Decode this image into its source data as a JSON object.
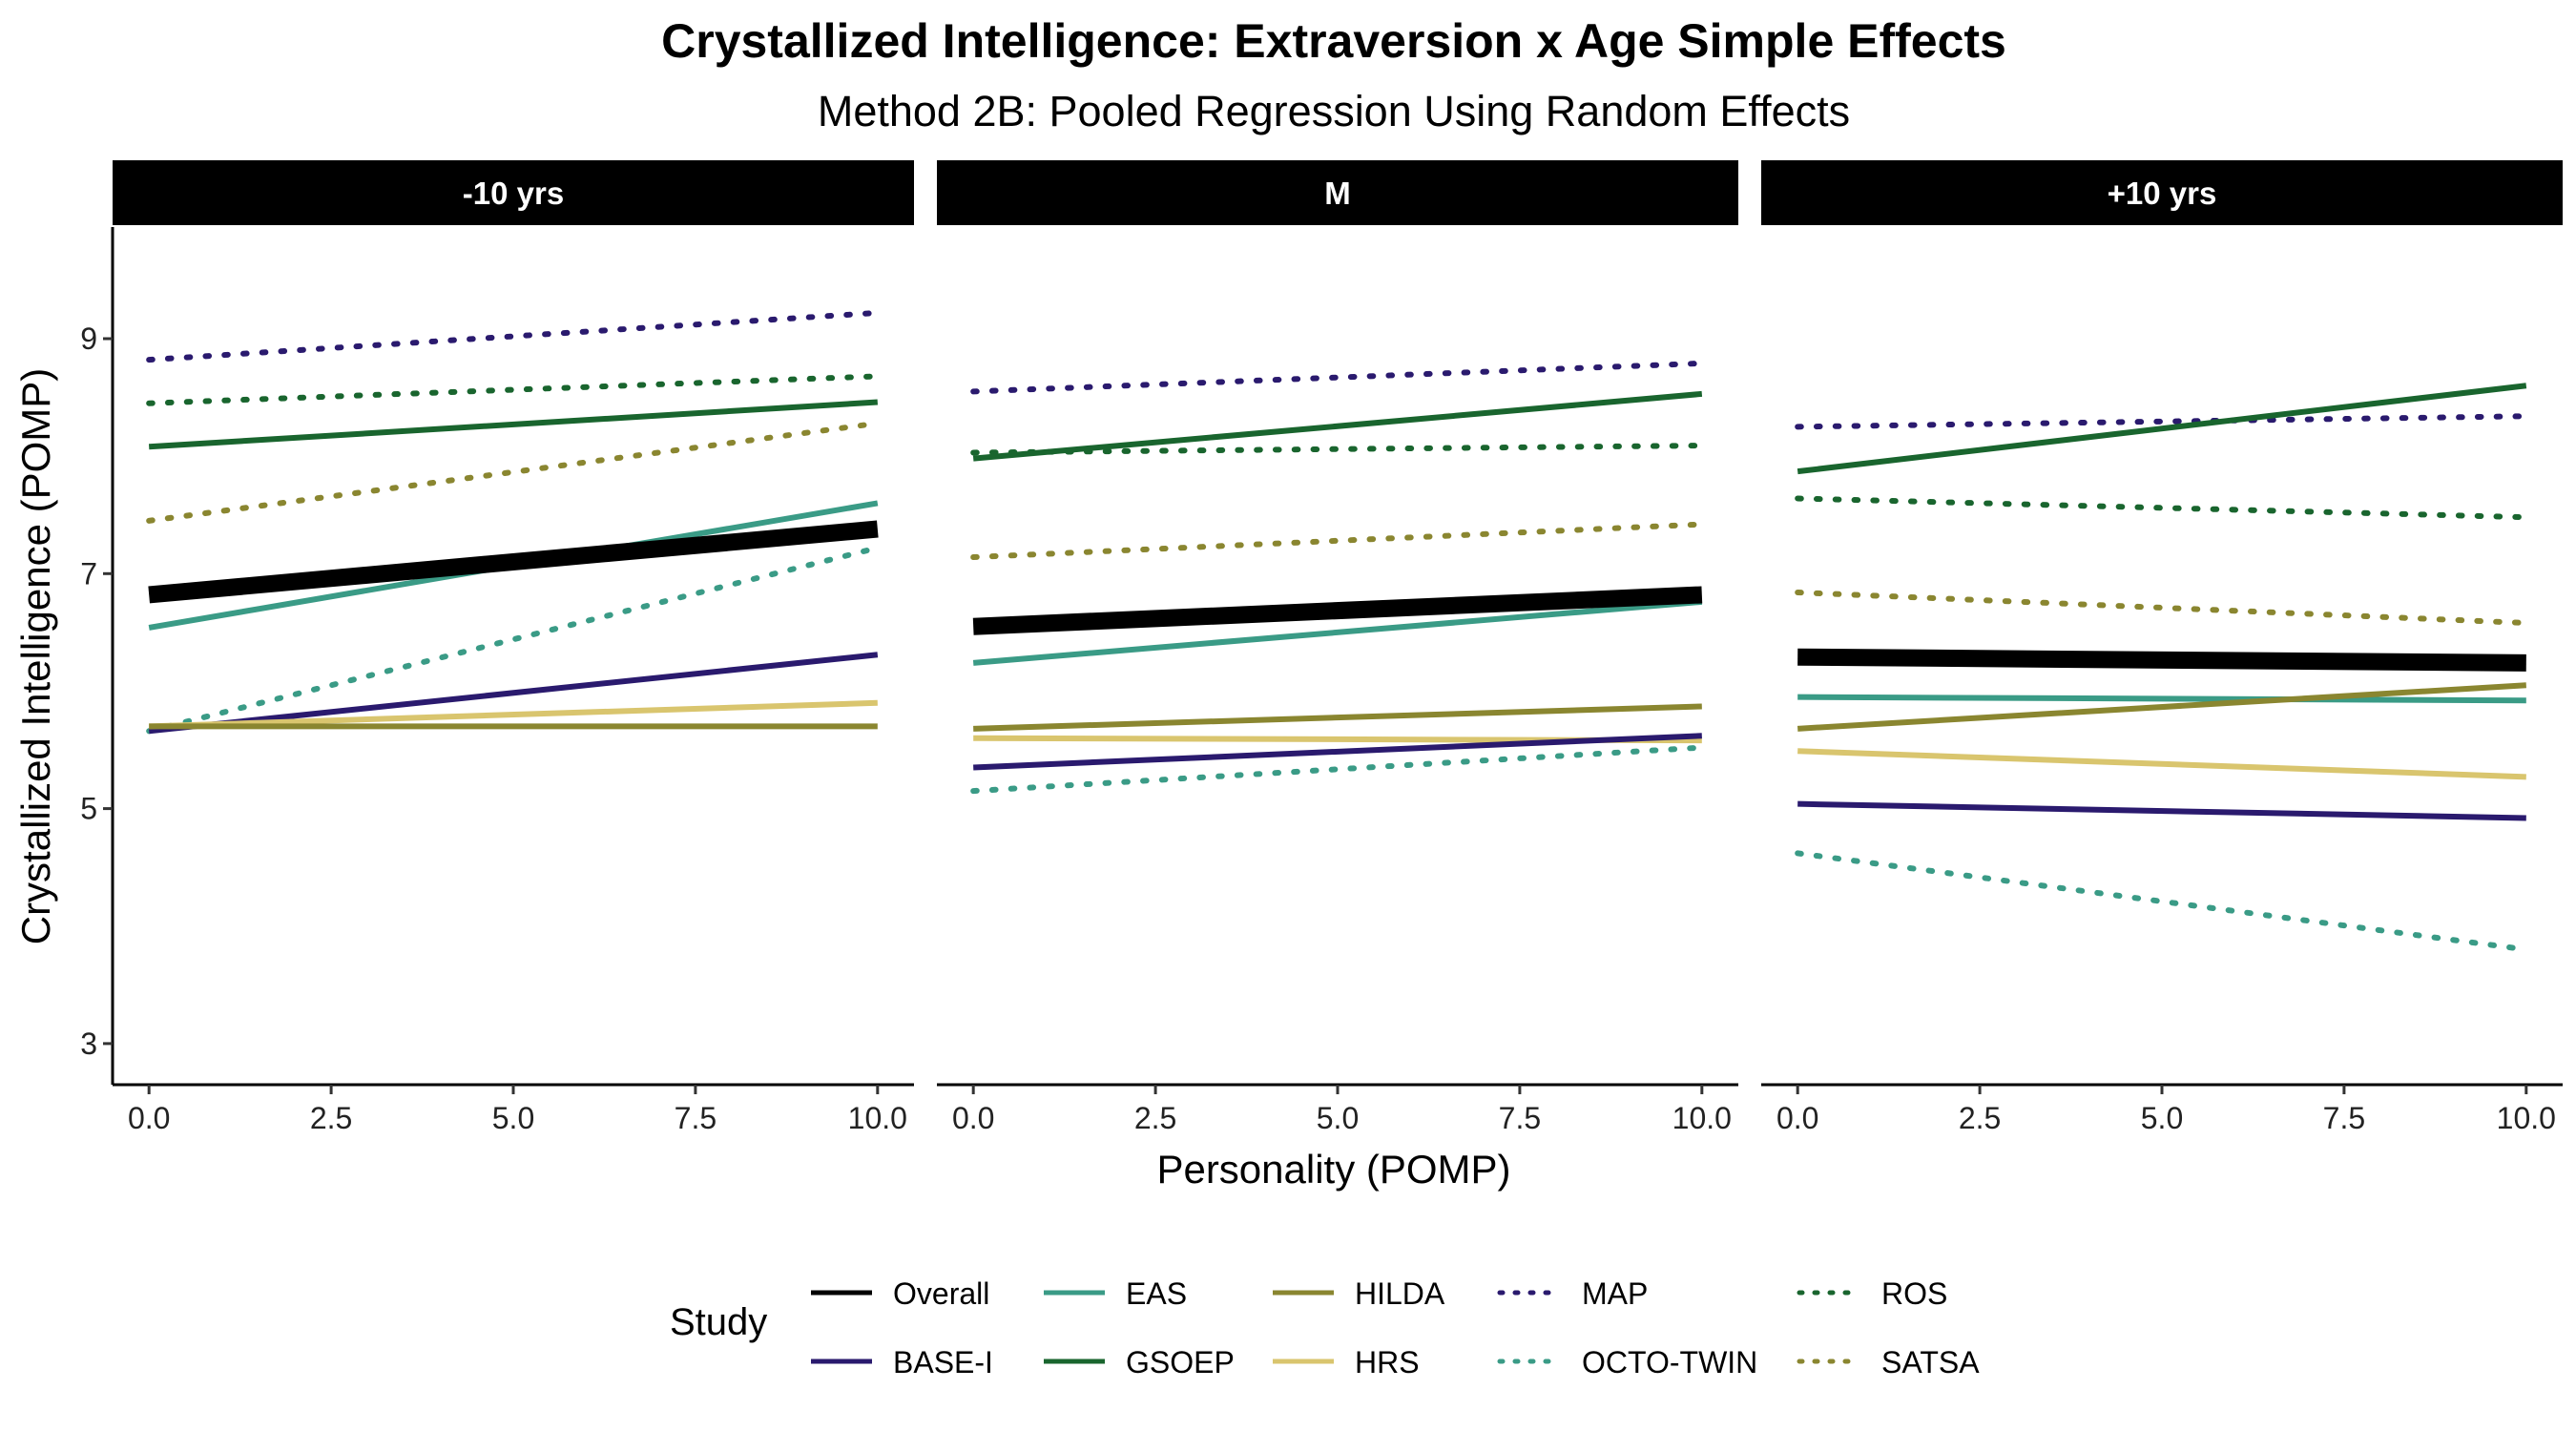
{
  "chart_data": {
    "type": "line",
    "title": "Crystallized Intelligence: Extraversion x Age Simple Effects",
    "subtitle": "Method 2B: Pooled Regression Using Random Effects",
    "xlabel": "Personality (POMP)",
    "ylabel": "Crystallized Intelligence (POMP)",
    "xlim": [
      -0.5,
      10.5
    ],
    "ylim": [
      2.65,
      9.95
    ],
    "x_ticks": [
      0,
      2.5,
      5,
      7.5,
      10
    ],
    "x_tick_labels": [
      "0.0",
      "2.5",
      "5.0",
      "7.5",
      "10.0"
    ],
    "y_ticks": [
      3,
      5,
      7,
      9
    ],
    "y_tick_labels": [
      "3",
      "5",
      "7",
      "9"
    ],
    "grid": false,
    "legend": {
      "title": "Study",
      "position": "bottom",
      "entries": [
        "Overall",
        "BASE-I",
        "EAS",
        "GSOEP",
        "HILDA",
        "HRS",
        "MAP",
        "OCTO-TWIN",
        "ROS",
        "SATSA"
      ]
    },
    "series_styles": {
      "Overall": {
        "color": "#000000",
        "dash": "solid"
      },
      "BASE-I": {
        "color": "#2a1a6e",
        "dash": "solid"
      },
      "EAS": {
        "color": "#3a9b86",
        "dash": "solid"
      },
      "GSOEP": {
        "color": "#19652e",
        "dash": "solid"
      },
      "HILDA": {
        "color": "#8a8630",
        "dash": "solid"
      },
      "HRS": {
        "color": "#d9c56e",
        "dash": "solid"
      },
      "MAP": {
        "color": "#2a1a6e",
        "dash": "dotted"
      },
      "OCTO-TWIN": {
        "color": "#3a9b86",
        "dash": "dotted"
      },
      "ROS": {
        "color": "#19652e",
        "dash": "dotted"
      },
      "SATSA": {
        "color": "#8a8630",
        "dash": "dotted"
      }
    },
    "panels": [
      {
        "label": "-10 yrs",
        "x": [
          0,
          10
        ],
        "series": [
          {
            "name": "MAP",
            "values": [
              8.82,
              9.22
            ]
          },
          {
            "name": "ROS",
            "values": [
              8.45,
              8.68
            ]
          },
          {
            "name": "GSOEP",
            "values": [
              8.08,
              8.46
            ]
          },
          {
            "name": "SATSA",
            "values": [
              7.45,
              8.28
            ]
          },
          {
            "name": "EAS",
            "values": [
              6.54,
              7.6
            ]
          },
          {
            "name": "OCTO-TWIN",
            "values": [
              5.66,
              7.22
            ]
          },
          {
            "name": "BASE-I",
            "values": [
              5.66,
              6.31
            ]
          },
          {
            "name": "HRS",
            "values": [
              5.7,
              5.9
            ]
          },
          {
            "name": "HILDA",
            "values": [
              5.7,
              5.7
            ]
          },
          {
            "name": "Overall",
            "values": [
              6.82,
              7.38
            ]
          }
        ]
      },
      {
        "label": "M",
        "x": [
          0,
          10
        ],
        "series": [
          {
            "name": "MAP",
            "values": [
              8.55,
              8.79
            ]
          },
          {
            "name": "ROS",
            "values": [
              8.03,
              8.09
            ]
          },
          {
            "name": "GSOEP",
            "values": [
              7.98,
              8.53
            ]
          },
          {
            "name": "SATSA",
            "values": [
              7.14,
              7.42
            ]
          },
          {
            "name": "EAS",
            "values": [
              6.24,
              6.76
            ]
          },
          {
            "name": "HILDA",
            "values": [
              5.68,
              5.87
            ]
          },
          {
            "name": "HRS",
            "values": [
              5.6,
              5.58
            ]
          },
          {
            "name": "BASE-I",
            "values": [
              5.35,
              5.62
            ]
          },
          {
            "name": "OCTO-TWIN",
            "values": [
              5.15,
              5.52
            ]
          },
          {
            "name": "Overall",
            "values": [
              6.55,
              6.82
            ]
          }
        ]
      },
      {
        "label": "+10 yrs",
        "x": [
          0,
          10
        ],
        "series": [
          {
            "name": "MAP",
            "values": [
              8.25,
              8.34
            ]
          },
          {
            "name": "GSOEP",
            "values": [
              7.87,
              8.6
            ]
          },
          {
            "name": "ROS",
            "values": [
              7.64,
              7.48
            ]
          },
          {
            "name": "SATSA",
            "values": [
              6.84,
              6.58
            ]
          },
          {
            "name": "EAS",
            "values": [
              5.95,
              5.92
            ]
          },
          {
            "name": "HILDA",
            "values": [
              5.68,
              6.05
            ]
          },
          {
            "name": "HRS",
            "values": [
              5.49,
              5.27
            ]
          },
          {
            "name": "BASE-I",
            "values": [
              5.04,
              4.92
            ]
          },
          {
            "name": "OCTO-TWIN",
            "values": [
              4.62,
              3.8
            ]
          },
          {
            "name": "Overall",
            "values": [
              6.29,
              6.24
            ]
          }
        ]
      }
    ]
  }
}
